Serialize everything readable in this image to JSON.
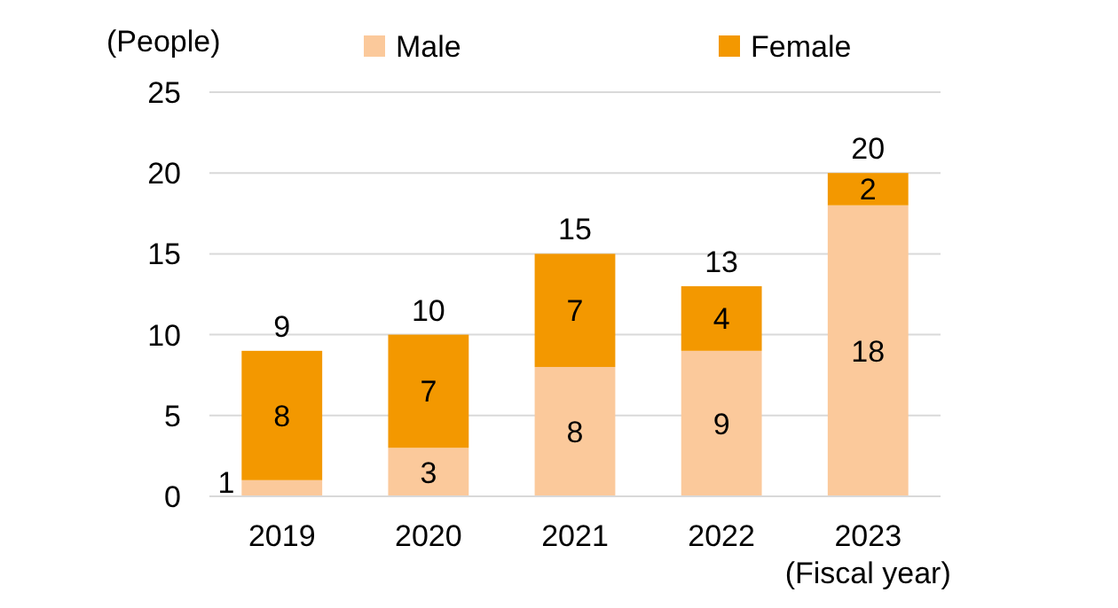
{
  "chart_data": {
    "type": "bar",
    "stacked": true,
    "categories": [
      "2019",
      "2020",
      "2021",
      "2022",
      "2023"
    ],
    "series": [
      {
        "name": "Male",
        "color": "#fbc99b",
        "values": [
          1,
          3,
          8,
          9,
          18
        ]
      },
      {
        "name": "Female",
        "color": "#f39800",
        "values": [
          8,
          7,
          7,
          4,
          2
        ]
      }
    ],
    "ylim": [
      0,
      25
    ],
    "yticks": [
      0,
      5,
      10,
      15,
      20,
      25
    ],
    "grid": "y",
    "ylabel": "(People)",
    "xlabel": "(Fiscal year)",
    "legend": "top",
    "data_labels": true,
    "totals": [
      "9",
      "10",
      "15",
      "13",
      "20"
    ]
  }
}
